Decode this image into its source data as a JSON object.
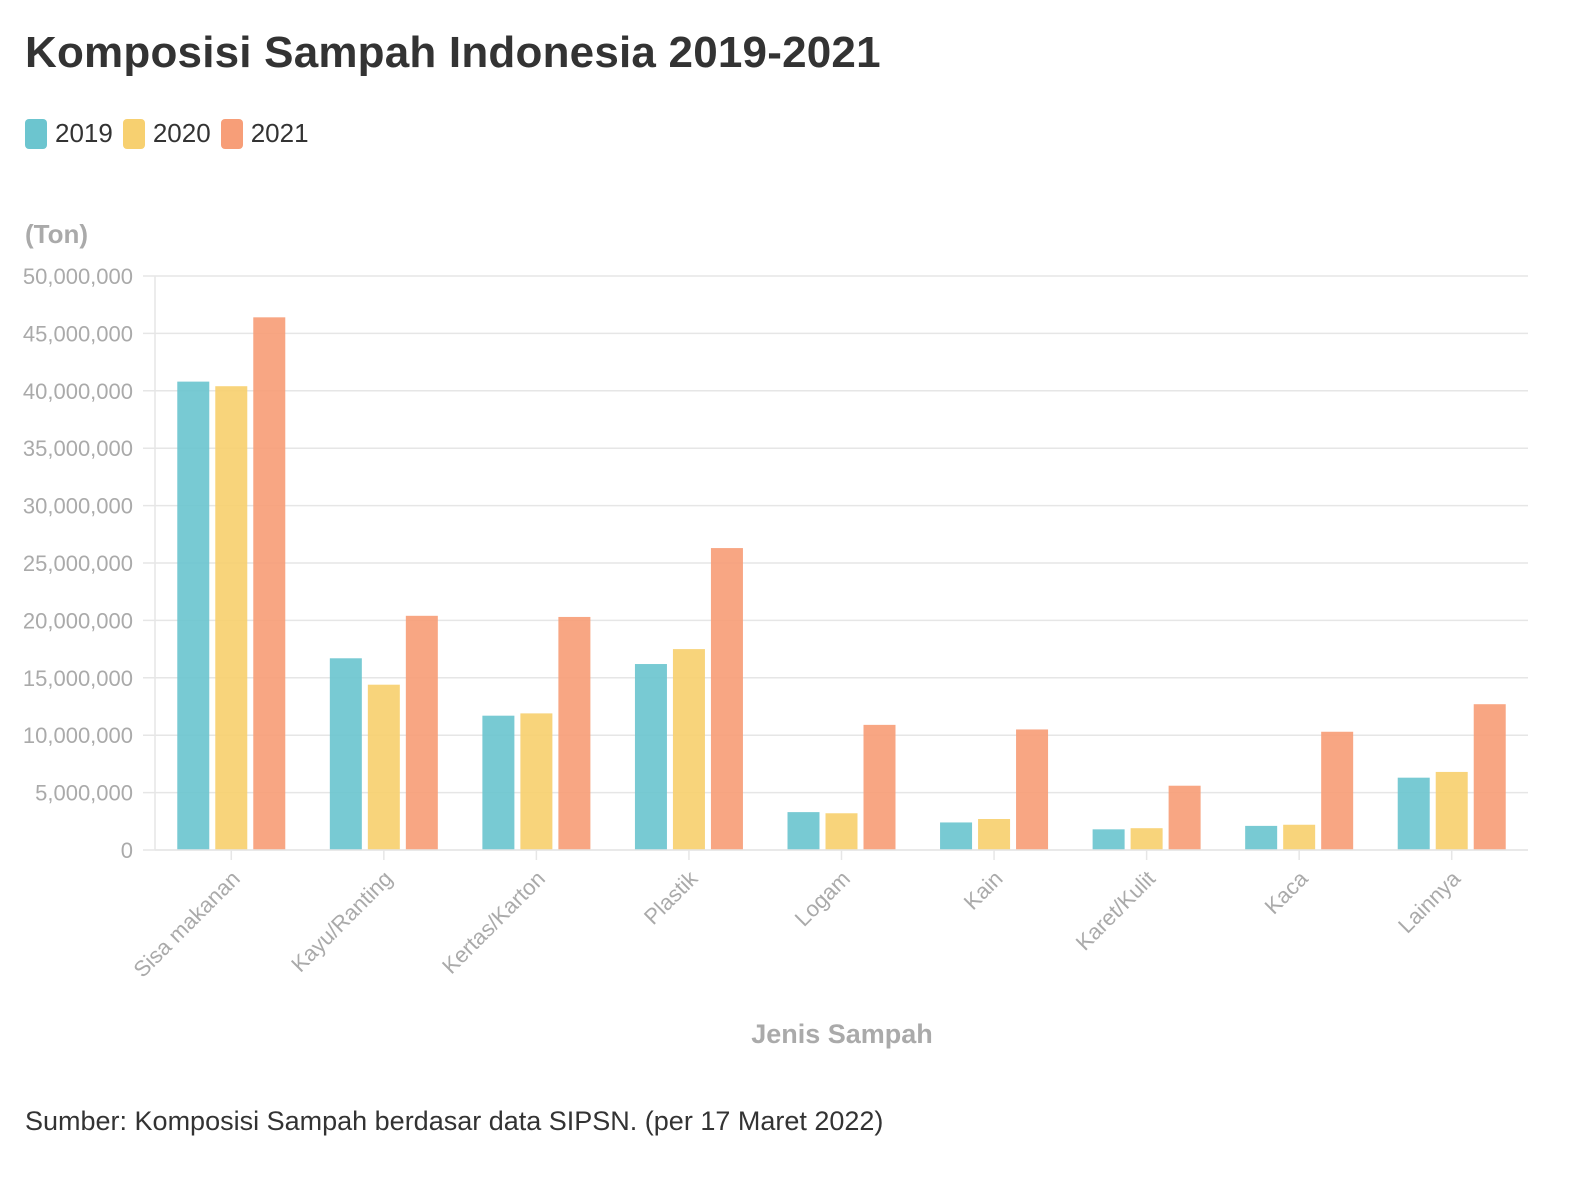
{
  "title": "Komposisi Sampah Indonesia 2019-2021",
  "source": "Sumber: Komposisi Sampah berdasar data SIPSN. (per 17 Maret 2022)",
  "colors": {
    "s2019": "#6CC5CF",
    "s2020": "#F7D070",
    "s2021": "#F79E78",
    "grid": "#e6e6e6",
    "axis_text": "#aaaaaa"
  },
  "chart_data": {
    "type": "bar",
    "title": "Komposisi Sampah Indonesia 2019-2021",
    "ylabel": "(Ton)",
    "xlabel": "Jenis Sampah",
    "ylim": [
      0,
      50000000
    ],
    "yticks": [
      0,
      5000000,
      10000000,
      15000000,
      20000000,
      25000000,
      30000000,
      35000000,
      40000000,
      45000000,
      50000000
    ],
    "ytick_labels": [
      "0",
      "5,000,000",
      "10,000,000",
      "15,000,000",
      "20,000,000",
      "25,000,000",
      "30,000,000",
      "35,000,000",
      "40,000,000",
      "45,000,000",
      "50,000,000"
    ],
    "grid": true,
    "legend_position": "top-left",
    "categories": [
      "Sisa makanan",
      "Kayu/Ranting",
      "Kertas/Karton",
      "Plastik",
      "Logam",
      "Kain",
      "Karet/Kulit",
      "Kaca",
      "Lainnya"
    ],
    "series": [
      {
        "name": "2019",
        "values": [
          40800000,
          16700000,
          11700000,
          16200000,
          3300000,
          2400000,
          1800000,
          2100000,
          6300000
        ]
      },
      {
        "name": "2020",
        "values": [
          40400000,
          14400000,
          11900000,
          17500000,
          3200000,
          2700000,
          1900000,
          2200000,
          6800000
        ]
      },
      {
        "name": "2021",
        "values": [
          46400000,
          20400000,
          20300000,
          26300000,
          10900000,
          10500000,
          5600000,
          10300000,
          12700000
        ]
      }
    ]
  }
}
